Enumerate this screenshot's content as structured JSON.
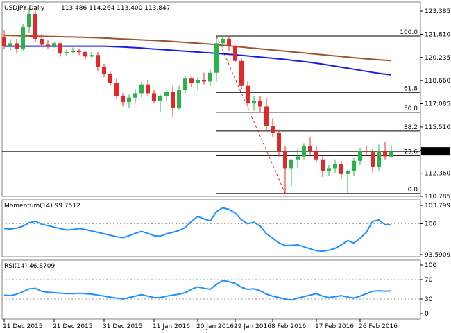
{
  "colors": {
    "background": "#ffffff",
    "bull": "#2bb24c",
    "bear": "#e02a2a",
    "sma_blue": "#1a1ae6",
    "sma_brown": "#a0522d",
    "indicator": "#1e90ff",
    "fib_line": "#000000",
    "price_box": "#000000",
    "price_box_text": "#ffffff"
  },
  "chart_data": [
    {
      "type": "candlestick",
      "title": "USDJPY,Daily",
      "ohlc_header": "113.486 114.264 113.400 113.847",
      "current_price": 113.847,
      "current_price_label": "113.847",
      "ylim": [
        110.785,
        124.0
      ],
      "y_ticks": [
        110.785,
        112.36,
        113.935,
        115.51,
        117.085,
        118.66,
        120.235,
        121.81,
        123.385
      ],
      "y_tick_labels": [
        "110.785",
        "112.360",
        "",
        "115.510",
        "117.085",
        "118.660",
        "120.235",
        "121.810",
        "123.385"
      ],
      "x_tick_labels": [
        "11 Dec 2015",
        "21 Dec 2015",
        "31 Dec 2015",
        "11 Jan 2016",
        "20 Jan 2016",
        "29 Jan 2016",
        "8 Feb 2016",
        "17 Feb 2016",
        "26 Feb 2016"
      ],
      "x_tick_indices": [
        0,
        8,
        16,
        24,
        31,
        37,
        43,
        50,
        57
      ],
      "candles": [
        [
          121.6,
          122.1,
          120.8,
          121.0
        ],
        [
          121.0,
          121.5,
          120.7,
          121.2
        ],
        [
          121.2,
          121.5,
          120.5,
          120.8
        ],
        [
          120.8,
          122.5,
          120.7,
          122.3
        ],
        [
          122.3,
          123.6,
          121.9,
          123.2
        ],
        [
          123.2,
          123.7,
          121.3,
          121.5
        ],
        [
          121.5,
          121.8,
          121.0,
          121.1
        ],
        [
          121.1,
          121.4,
          120.8,
          121.0
        ],
        [
          121.0,
          121.3,
          120.9,
          121.2
        ],
        [
          121.2,
          121.3,
          120.3,
          120.5
        ],
        [
          120.5,
          120.8,
          120.3,
          120.6
        ],
        [
          120.6,
          120.9,
          120.5,
          120.7
        ],
        [
          120.7,
          120.8,
          120.4,
          120.6
        ],
        [
          120.6,
          120.7,
          120.1,
          120.3
        ],
        [
          120.3,
          120.6,
          120.2,
          120.4
        ],
        [
          120.4,
          120.6,
          119.3,
          119.6
        ],
        [
          119.6,
          119.8,
          118.9,
          119.1
        ],
        [
          119.1,
          119.3,
          118.3,
          118.5
        ],
        [
          118.5,
          118.8,
          117.4,
          117.6
        ],
        [
          117.6,
          117.8,
          116.9,
          117.2
        ],
        [
          117.2,
          117.7,
          116.8,
          117.5
        ],
        [
          117.5,
          118.1,
          117.1,
          117.8
        ],
        [
          117.8,
          118.6,
          117.5,
          118.4
        ],
        [
          118.4,
          118.7,
          117.6,
          117.8
        ],
        [
          117.8,
          118.0,
          117.1,
          117.3
        ],
        [
          117.3,
          117.7,
          116.5,
          117.6
        ],
        [
          117.6,
          118.0,
          117.3,
          117.9
        ],
        [
          117.9,
          118.3,
          116.2,
          116.8
        ],
        [
          116.8,
          118.3,
          116.7,
          118.0
        ],
        [
          118.0,
          119.0,
          117.8,
          118.8
        ],
        [
          118.8,
          118.9,
          118.2,
          118.5
        ],
        [
          118.5,
          118.9,
          118.0,
          118.7
        ],
        [
          118.7,
          119.2,
          118.4,
          118.6
        ],
        [
          118.6,
          119.4,
          118.3,
          119.2
        ],
        [
          119.2,
          121.6,
          118.6,
          121.2
        ],
        [
          121.2,
          121.7,
          120.9,
          121.5
        ],
        [
          121.5,
          121.7,
          120.7,
          121.0
        ],
        [
          121.0,
          121.1,
          119.9,
          120.0
        ],
        [
          120.0,
          120.2,
          118.1,
          118.3
        ],
        [
          118.3,
          118.6,
          116.9,
          117.1
        ],
        [
          117.1,
          117.6,
          116.6,
          117.3
        ],
        [
          117.3,
          117.6,
          116.5,
          116.9
        ],
        [
          116.9,
          117.5,
          115.3,
          115.6
        ],
        [
          115.6,
          116.1,
          114.8,
          115.1
        ],
        [
          115.1,
          115.3,
          113.5,
          113.9
        ],
        [
          113.9,
          114.2,
          110.98,
          112.7
        ],
        [
          112.7,
          113.2,
          111.5,
          113.3
        ],
        [
          113.3,
          114.0,
          112.7,
          113.5
        ],
        [
          113.5,
          114.4,
          113.3,
          114.2
        ],
        [
          114.2,
          114.8,
          113.5,
          113.9
        ],
        [
          113.9,
          114.2,
          113.1,
          113.3
        ],
        [
          113.3,
          113.6,
          112.1,
          112.5
        ],
        [
          112.5,
          112.9,
          112.2,
          112.7
        ],
        [
          112.7,
          113.3,
          112.4,
          113.0
        ],
        [
          113.0,
          113.2,
          112.0,
          112.3
        ],
        [
          112.3,
          112.6,
          110.99,
          112.5
        ],
        [
          112.5,
          113.4,
          112.2,
          113.2
        ],
        [
          113.2,
          114.1,
          112.9,
          113.9
        ],
        [
          113.9,
          114.2,
          113.6,
          113.8
        ],
        [
          113.8,
          114.0,
          112.4,
          112.8
        ],
        [
          112.8,
          114.3,
          112.5,
          113.9
        ],
        [
          113.9,
          114.5,
          113.3,
          113.5
        ],
        [
          113.486,
          114.264,
          113.4,
          113.847
        ]
      ],
      "sma_brown": [
        121.73,
        121.72,
        121.71,
        121.7,
        121.69,
        121.68,
        121.67,
        121.66,
        121.65,
        121.64,
        121.63,
        121.62,
        121.61,
        121.6,
        121.59,
        121.57,
        121.55,
        121.53,
        121.51,
        121.49,
        121.47,
        121.45,
        121.43,
        121.41,
        121.39,
        121.37,
        121.35,
        121.32,
        121.29,
        121.26,
        121.23,
        121.2,
        121.17,
        121.14,
        121.1,
        121.06,
        121.02,
        120.98,
        120.94,
        120.9,
        120.86,
        120.82,
        120.78,
        120.74,
        120.7,
        120.66,
        120.62,
        120.58,
        120.54,
        120.5,
        120.46,
        120.42,
        120.38,
        120.34,
        120.3,
        120.26,
        120.22,
        120.18,
        120.14,
        120.11,
        120.08,
        120.05,
        120.02
      ],
      "sma_blue": [
        121.0,
        121.0,
        121.0,
        121.0,
        121.0,
        121.0,
        121.0,
        121.0,
        121.0,
        121.0,
        121.0,
        121.0,
        121.0,
        121.0,
        121.0,
        121.0,
        121.0,
        120.98,
        120.96,
        120.94,
        120.92,
        120.9,
        120.87,
        120.84,
        120.81,
        120.78,
        120.75,
        120.72,
        120.69,
        120.66,
        120.63,
        120.6,
        120.57,
        120.54,
        120.51,
        120.48,
        120.45,
        120.42,
        120.38,
        120.34,
        120.3,
        120.26,
        120.22,
        120.18,
        120.14,
        120.1,
        120.05,
        120.0,
        119.95,
        119.9,
        119.84,
        119.78,
        119.71,
        119.64,
        119.57,
        119.5,
        119.43,
        119.36,
        119.29,
        119.22,
        119.16,
        119.1,
        119.05
      ],
      "fib_levels": [
        {
          "label": "100.0",
          "value": 121.69
        },
        {
          "label": "61.8",
          "value": 117.85
        },
        {
          "label": "50.0",
          "value": 116.5
        },
        {
          "label": "38.2",
          "value": 115.23
        },
        {
          "label": "23.6",
          "value": 113.55
        },
        {
          "label": "0.0",
          "value": 110.98
        }
      ],
      "fib_start_index": 34,
      "trend_line": {
        "from_index": 34,
        "from_value": 121.69,
        "to_index": 45,
        "to_value": 110.98
      }
    },
    {
      "type": "line",
      "title": "Momentum(14) 99.7512",
      "ylim": [
        93.5909,
        103.7996
      ],
      "y_tick_labels": [
        "103.7996",
        "100",
        "93.5909"
      ],
      "y_tick_values": [
        103.7996,
        100,
        93.5909
      ],
      "reference_level": 100,
      "values": [
        99.0,
        98.9,
        99.1,
        99.5,
        100.2,
        100.5,
        99.9,
        99.6,
        99.3,
        99.0,
        98.7,
        98.8,
        99.0,
        98.8,
        98.5,
        98.2,
        97.9,
        97.6,
        97.3,
        97.1,
        97.5,
        98.0,
        98.4,
        98.0,
        97.5,
        97.4,
        97.9,
        98.2,
        98.6,
        99.2,
        100.5,
        101.5,
        101.0,
        100.6,
        102.5,
        103.3,
        103.0,
        102.2,
        100.8,
        100.0,
        100.3,
        99.5,
        97.9,
        97.0,
        96.0,
        95.5,
        95.5,
        95.6,
        95.2,
        94.8,
        94.4,
        94.3,
        94.5,
        94.9,
        95.6,
        96.5,
        96.0,
        97.0,
        98.2,
        100.5,
        100.8,
        99.8,
        99.75
      ]
    },
    {
      "type": "line",
      "title": "RSI(14) 46.8709",
      "ylim": [
        0,
        100
      ],
      "y_tick_labels": [
        "100",
        "70",
        "30",
        "0"
      ],
      "y_tick_values": [
        100,
        70,
        30,
        0
      ],
      "reference_levels": [
        70,
        30
      ],
      "values": [
        38,
        37,
        40,
        45,
        51,
        52,
        46,
        44,
        43,
        42,
        41,
        41,
        42,
        41,
        40,
        38,
        36,
        34,
        32,
        30,
        33,
        36,
        39,
        36,
        33,
        33,
        36,
        38,
        40,
        43,
        50,
        55,
        52,
        50,
        60,
        68,
        66,
        62,
        54,
        50,
        51,
        47,
        40,
        36,
        33,
        30,
        28,
        32,
        35,
        38,
        41,
        36,
        33,
        35,
        37,
        34,
        32,
        36,
        41,
        46,
        47,
        46,
        46.87
      ]
    }
  ]
}
